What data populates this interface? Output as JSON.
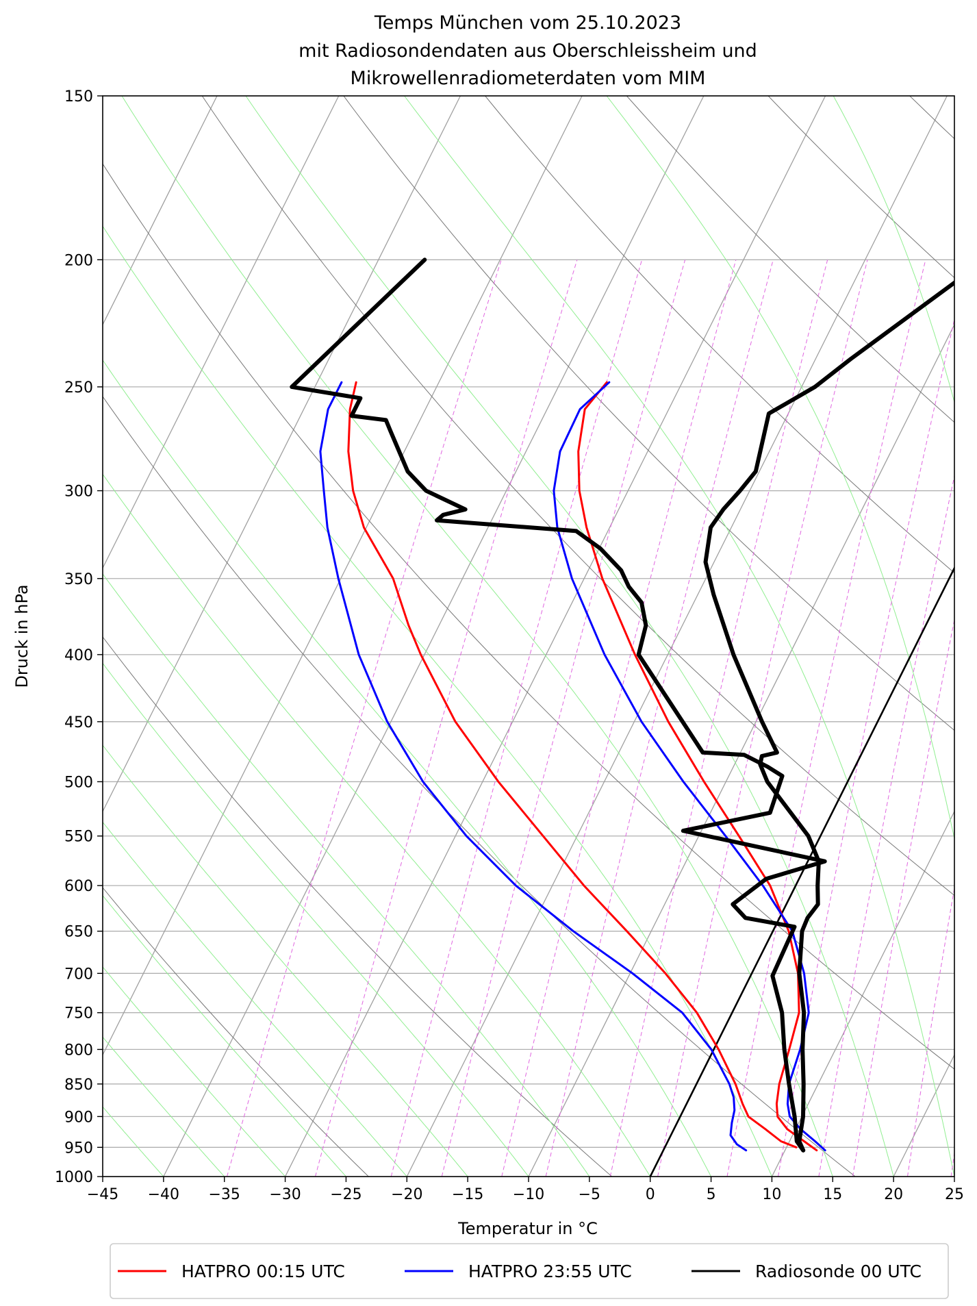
{
  "chart_data": {
    "type": "line",
    "chart_kind": "skew-T log-p thermodynamic diagram",
    "title": [
      "Temps München vom 25.10.2023",
      "mit Radiosondendaten aus Oberschleissheim und",
      "Mikrowellenradiometerdaten vom MIM"
    ],
    "xlabel": "Temperatur in $^\\circ$C",
    "xlabel_display": "Temperatur in °C",
    "ylabel": "Druck in hPa",
    "xlim": [
      -45,
      25
    ],
    "ylim": [
      1000,
      150
    ],
    "y_scale": "log (pressure, inverted)",
    "x_ticks": [
      -45,
      -40,
      -35,
      -30,
      -25,
      -20,
      -15,
      -10,
      -5,
      0,
      5,
      10,
      15,
      20,
      25
    ],
    "x_tick_labels": [
      "−45",
      "−40",
      "−35",
      "−30",
      "−25",
      "−20",
      "−15",
      "−10",
      "−5",
      "0",
      "5",
      "10",
      "15",
      "20",
      "25"
    ],
    "y_ticks": [
      150,
      200,
      250,
      300,
      350,
      400,
      450,
      500,
      550,
      600,
      650,
      700,
      750,
      800,
      850,
      900,
      950,
      1000
    ],
    "y_tick_labels": [
      "150",
      "200",
      "250",
      "300",
      "350",
      "400",
      "450",
      "500",
      "550",
      "600",
      "650",
      "700",
      "750",
      "800",
      "850",
      "900",
      "950",
      "1000"
    ],
    "grid": true,
    "legend_position": "bottom, below axes",
    "skew_lines_note": "isotherms grey, dry adiabats thin dark grey, moist adiabats light green, mixing ratio dashed magenta",
    "colors": {
      "isotherm": "#a0a0a0",
      "dry_adiabat": "#777777",
      "moist_adiabat": "#90ee90",
      "mixing_ratio": "#e066e0",
      "grid": "#b0b0b0",
      "zero_isotherm": "#000000"
    },
    "zero_isotherm": {
      "t": 0,
      "p_from": 1000,
      "p_to": 310
    },
    "series": [
      {
        "name": "HATPRO 00:15 UTC",
        "color": "#ff0000",
        "lines": [
          {
            "p": [
              248,
              260,
              280,
              300,
              320,
              350,
              380,
              400,
              450,
              500,
              550,
              600,
              650,
              700,
              750,
              800,
              850,
              880,
              900,
              920,
              940,
              950
            ],
            "t": [
              -56.8,
              -56.2,
              -54.6,
              -52.6,
              -50.2,
              -45.7,
              -42.5,
              -40.3,
              -34.7,
              -28.7,
              -22.8,
              -17.4,
              -12.0,
              -7.1,
              -2.9,
              0.4,
              3.2,
              4.6,
              5.6,
              7.5,
              9.3,
              10.8
            ]
          },
          {
            "p": [
              248,
              260,
              280,
              300,
              320,
              350,
              400,
              450,
              500,
              550,
              600,
              650,
              700,
              750,
              800,
              850,
              880,
              900,
              920,
              940,
              955
            ],
            "t": [
              -36.2,
              -36.9,
              -35.7,
              -34.0,
              -31.9,
              -28.5,
              -22.7,
              -17.2,
              -11.8,
              -6.7,
              -2.1,
              1.3,
              3.8,
              5.5,
              6.2,
              6.8,
              7.4,
              8.0,
              9.3,
              11.2,
              12.6
            ]
          }
        ]
      },
      {
        "name": "HATPRO 23:55 UTC",
        "color": "#0000ff",
        "lines": [
          {
            "p": [
              248,
              260,
              280,
              300,
              320,
              350,
              400,
              450,
              500,
              550,
              600,
              650,
              700,
              750,
              800,
              850,
              870,
              890,
              910,
              930,
              945,
              955
            ],
            "t": [
              -58.0,
              -58.0,
              -56.9,
              -55.0,
              -53.2,
              -50.2,
              -45.4,
              -40.3,
              -34.9,
              -29.1,
              -23.0,
              -16.4,
              -9.8,
              -4.1,
              -0.2,
              2.7,
              3.6,
              4.2,
              4.5,
              4.9,
              5.8,
              6.8
            ]
          },
          {
            "p": [
              248,
              260,
              280,
              300,
              320,
              350,
              400,
              450,
              500,
              550,
              600,
              650,
              700,
              750,
              800,
              850,
              880,
              900,
              920,
              940,
              955
            ],
            "t": [
              -36.0,
              -37.3,
              -37.2,
              -36.1,
              -34.3,
              -31.0,
              -25.2,
              -19.4,
              -13.5,
              -7.8,
              -2.7,
              1.6,
              4.3,
              6.3,
              7.1,
              7.6,
              8.3,
              9.0,
              10.4,
              12.1,
              13.3
            ]
          }
        ]
      },
      {
        "name": "Radiosonde 00 UTC",
        "color": "#000000",
        "lines": [
          {
            "p": [
              200,
              250,
              255,
              263,
              265,
              270,
              290,
              300,
              310,
              313,
              316,
              322,
              332,
              345,
              355,
              365,
              380,
              400,
              475,
              477,
              487,
              495,
              528,
              545,
              575,
              593,
              620,
              635,
              645,
              703,
              750,
              800,
              850,
              900,
              940,
              955
            ],
            "t": [
              -56.2,
              -61.9,
              -55.8,
              -55.8,
              -52.8,
              -52.0,
              -48.9,
              -46.6,
              -42.6,
              -44.2,
              -44.5,
              -32.6,
              -29.9,
              -27.3,
              -26.0,
              -24.3,
              -23.0,
              -22.4,
              -13.1,
              -9.6,
              -7.2,
              -5.6,
              -5.1,
              -11.5,
              1.4,
              -2.7,
              -4.4,
              -2.8,
              1.6,
              1.8,
              4.1,
              5.8,
              7.6,
              9.4,
              10.6,
              11.5
            ]
          },
          {
            "p": [
              150,
              200,
              202,
              238,
              250,
              262,
              290,
              300,
              310,
              320,
              340,
              360,
              400,
              450,
              475,
              478,
              485,
              500,
              550,
              575,
              600,
              620,
              635,
              650,
              700,
              750,
              800,
              850,
              900,
              940,
              955
            ],
            "t": [
              -0.4,
              -10.6,
              -10.5,
              -17.1,
              -18.9,
              -21.6,
              -20.3,
              -20.8,
              -21.4,
              -21.7,
              -20.7,
              -18.7,
              -14.6,
              -9.5,
              -7.0,
              -8.1,
              -7.9,
              -6.6,
              -1.0,
              0.9,
              1.8,
              2.6,
              2.3,
              2.4,
              3.9,
              5.9,
              7.3,
              8.8,
              10.1,
              10.8,
              11.5
            ]
          }
        ]
      }
    ]
  }
}
